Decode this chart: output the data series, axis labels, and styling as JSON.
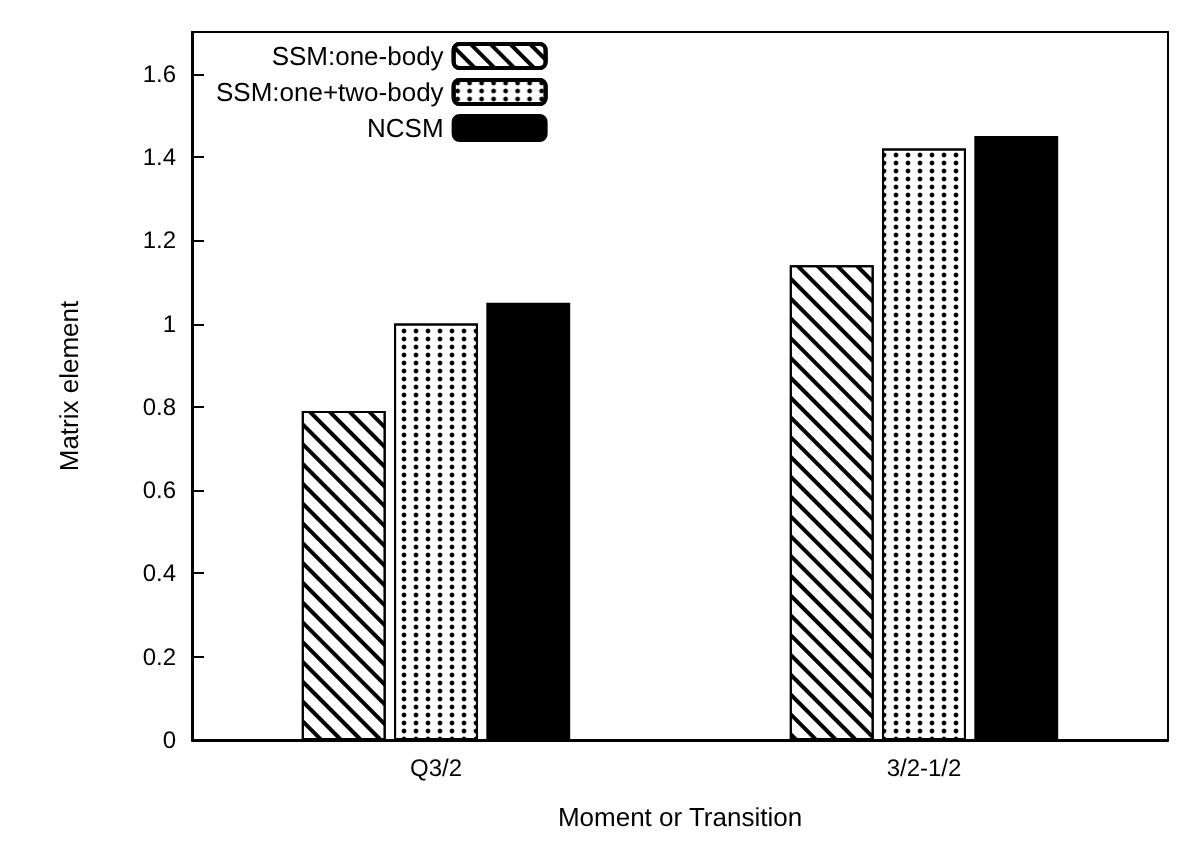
{
  "chart_data": {
    "type": "bar",
    "xlabel": "Moment or Transition",
    "ylabel": "Matrix element",
    "categories": [
      "Q3/2",
      "3/2-1/2"
    ],
    "series": [
      {
        "name": "SSM:one-body",
        "color": "#ffffff",
        "values": [
          0.79,
          1.14
        ]
      },
      {
        "name": "SSM:one+two-body",
        "color": "#ffffff",
        "values": [
          1.0,
          1.42
        ]
      },
      {
        "name": "NCSM",
        "color": "#000000",
        "values": [
          1.05,
          1.45
        ]
      }
    ],
    "ylim": [
      0,
      1.7
    ],
    "yticks": [
      0,
      0.2,
      0.4,
      0.6,
      0.8,
      1,
      1.2,
      1.4,
      1.6
    ],
    "grid": false,
    "legend": "top left"
  }
}
